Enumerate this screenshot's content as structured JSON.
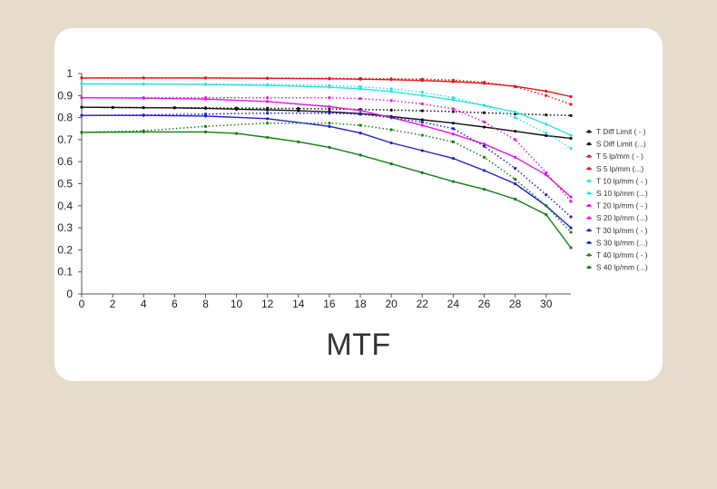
{
  "caption": "MTF",
  "chart_data": {
    "type": "line",
    "title": "",
    "xlabel": "",
    "ylabel": "",
    "xlim": [
      0,
      31.6
    ],
    "ylim": [
      0,
      1
    ],
    "x_ticks": [
      0,
      2,
      4,
      6,
      8,
      10,
      12,
      14,
      16,
      18,
      20,
      22,
      24,
      26,
      28,
      30
    ],
    "y_ticks": [
      0,
      0.1,
      0.2,
      0.3,
      0.4,
      0.5,
      0.6,
      0.7,
      0.8,
      0.9,
      1
    ],
    "y_tick_labels": [
      "0",
      "0.1",
      "0.2",
      "0.3",
      "0.4",
      "0.5",
      "0.6",
      "0.7",
      "0.8",
      "0.9",
      "1"
    ],
    "grid": false,
    "legend_position": "right",
    "series": [
      {
        "name": "T Diff  Limit ( - )",
        "color": "#111111",
        "style": "solid",
        "x": [
          0,
          2,
          4,
          6,
          8,
          10,
          12,
          14,
          16,
          18,
          20,
          22,
          24,
          26,
          28,
          30,
          31.6
        ],
        "y": [
          0.847,
          0.846,
          0.845,
          0.844,
          0.842,
          0.838,
          0.835,
          0.831,
          0.826,
          0.818,
          0.805,
          0.79,
          0.775,
          0.757,
          0.738,
          0.718,
          0.706
        ]
      },
      {
        "name": "S Diff  Limit (...)",
        "color": "#111111",
        "style": "dotted",
        "x": [
          0,
          2,
          4,
          6,
          8,
          10,
          12,
          14,
          16,
          18,
          20,
          22,
          24,
          26,
          28,
          30,
          31.6
        ],
        "y": [
          0.847,
          0.846,
          0.845,
          0.845,
          0.844,
          0.843,
          0.842,
          0.841,
          0.839,
          0.837,
          0.834,
          0.831,
          0.827,
          0.822,
          0.817,
          0.812,
          0.809
        ]
      },
      {
        "name": "T 5 lp/mm ( - )",
        "color": "#e01818",
        "style": "solid",
        "x": [
          0,
          4,
          8,
          12,
          16,
          18,
          20,
          22,
          24,
          26,
          28,
          30,
          31.6
        ],
        "y": [
          0.98,
          0.98,
          0.98,
          0.978,
          0.976,
          0.974,
          0.972,
          0.968,
          0.963,
          0.955,
          0.942,
          0.92,
          0.895
        ]
      },
      {
        "name": "S 5 lp/mm (...)",
        "color": "#e01818",
        "style": "dotted",
        "x": [
          0,
          4,
          8,
          12,
          16,
          18,
          20,
          22,
          24,
          26,
          28,
          30,
          31.6
        ],
        "y": [
          0.98,
          0.98,
          0.98,
          0.979,
          0.978,
          0.977,
          0.976,
          0.974,
          0.97,
          0.96,
          0.94,
          0.9,
          0.86
        ]
      },
      {
        "name": "T 10 lp/mm ( - )",
        "color": "#2ee0e6",
        "style": "solid",
        "x": [
          0,
          4,
          8,
          12,
          16,
          18,
          20,
          22,
          24,
          26,
          28,
          30,
          31.6
        ],
        "y": [
          0.953,
          0.952,
          0.95,
          0.946,
          0.938,
          0.93,
          0.918,
          0.9,
          0.88,
          0.855,
          0.825,
          0.77,
          0.72
        ]
      },
      {
        "name": "S 10 lp/mm (...)",
        "color": "#2ee0e6",
        "style": "dotted",
        "x": [
          0,
          4,
          8,
          12,
          16,
          18,
          20,
          22,
          24,
          26,
          28,
          30,
          31.6
        ],
        "y": [
          0.953,
          0.953,
          0.952,
          0.95,
          0.946,
          0.94,
          0.93,
          0.915,
          0.89,
          0.855,
          0.8,
          0.73,
          0.66
        ]
      },
      {
        "name": "T 20 lp/mm ( - )",
        "color": "#e11ae1",
        "style": "solid",
        "x": [
          0,
          4,
          8,
          12,
          16,
          18,
          20,
          22,
          24,
          26,
          28,
          30,
          31.6
        ],
        "y": [
          0.89,
          0.888,
          0.884,
          0.873,
          0.85,
          0.832,
          0.8,
          0.765,
          0.725,
          0.68,
          0.62,
          0.54,
          0.44
        ]
      },
      {
        "name": "S 20 lp/mm (...)",
        "color": "#e11ae1",
        "style": "dotted",
        "x": [
          0,
          4,
          8,
          12,
          16,
          18,
          20,
          22,
          24,
          26,
          28,
          30,
          31.6
        ],
        "y": [
          0.89,
          0.89,
          0.89,
          0.89,
          0.89,
          0.886,
          0.877,
          0.862,
          0.84,
          0.78,
          0.7,
          0.55,
          0.42
        ]
      },
      {
        "name": "T 30 lp/mm ( - )",
        "color": "#2020cc",
        "style": "solid",
        "x": [
          0,
          4,
          8,
          12,
          16,
          18,
          20,
          22,
          24,
          26,
          28,
          30,
          31.6
        ],
        "y": [
          0.81,
          0.81,
          0.807,
          0.795,
          0.76,
          0.73,
          0.685,
          0.65,
          0.615,
          0.56,
          0.5,
          0.4,
          0.3
        ]
      },
      {
        "name": "S 30 lp/mm (...)",
        "color": "#2020cc",
        "style": "dotted",
        "x": [
          0,
          4,
          8,
          12,
          16,
          18,
          20,
          22,
          24,
          26,
          28,
          30,
          31.6
        ],
        "y": [
          0.81,
          0.812,
          0.816,
          0.82,
          0.82,
          0.815,
          0.8,
          0.78,
          0.75,
          0.67,
          0.57,
          0.45,
          0.35
        ]
      },
      {
        "name": "T 40 lp/mm ( - )",
        "color": "#128012",
        "style": "solid",
        "x": [
          0,
          4,
          8,
          10,
          12,
          14,
          16,
          18,
          20,
          22,
          24,
          26,
          28,
          30,
          31.6
        ],
        "y": [
          0.733,
          0.735,
          0.735,
          0.728,
          0.71,
          0.69,
          0.665,
          0.63,
          0.59,
          0.55,
          0.51,
          0.475,
          0.43,
          0.36,
          0.21
        ]
      },
      {
        "name": "S 40 lp/mm (...)",
        "color": "#128012",
        "style": "dotted",
        "x": [
          0,
          4,
          8,
          12,
          16,
          18,
          20,
          22,
          24,
          26,
          28,
          30,
          31.6
        ],
        "y": [
          0.733,
          0.74,
          0.76,
          0.775,
          0.775,
          0.765,
          0.745,
          0.72,
          0.69,
          0.62,
          0.52,
          0.4,
          0.28
        ]
      }
    ]
  }
}
